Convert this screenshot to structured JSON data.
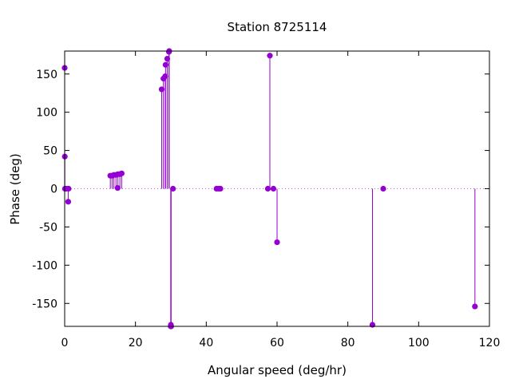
{
  "chart_data": {
    "type": "scatter",
    "style": "impulses-with-points",
    "title": "Station 8725114",
    "xlabel": "Angular speed (deg/hr)",
    "ylabel": "Phase (deg)",
    "xlim": [
      0,
      120
    ],
    "ylim": [
      -180,
      180
    ],
    "xticks": [
      0,
      20,
      40,
      60,
      80,
      100,
      120
    ],
    "yticks": [
      -150,
      -100,
      -50,
      0,
      50,
      100,
      150
    ],
    "zero_line": "dotted",
    "grid": false,
    "legend": "none",
    "color": "#9400d3",
    "points": [
      {
        "x": 0.0,
        "y": 158
      },
      {
        "x": 0.04,
        "y": 42
      },
      {
        "x": 0.08,
        "y": 0
      },
      {
        "x": 0.5,
        "y": 0
      },
      {
        "x": 1.0,
        "y": -17
      },
      {
        "x": 1.1,
        "y": 0
      },
      {
        "x": 12.9,
        "y": 17
      },
      {
        "x": 13.4,
        "y": 17
      },
      {
        "x": 13.9,
        "y": 18
      },
      {
        "x": 14.5,
        "y": 18
      },
      {
        "x": 14.96,
        "y": 1
      },
      {
        "x": 15.04,
        "y": 19
      },
      {
        "x": 15.6,
        "y": 19
      },
      {
        "x": 16.1,
        "y": 20
      },
      {
        "x": 27.4,
        "y": 130
      },
      {
        "x": 27.9,
        "y": 144
      },
      {
        "x": 28.4,
        "y": 147
      },
      {
        "x": 28.5,
        "y": 162
      },
      {
        "x": 28.98,
        "y": 170
      },
      {
        "x": 29.46,
        "y": 179
      },
      {
        "x": 29.53,
        "y": 180
      },
      {
        "x": 29.96,
        "y": -180
      },
      {
        "x": 30.0,
        "y": -178
      },
      {
        "x": 30.08,
        "y": -180
      },
      {
        "x": 30.6,
        "y": 0
      },
      {
        "x": 42.9,
        "y": 0
      },
      {
        "x": 43.5,
        "y": 0
      },
      {
        "x": 44.0,
        "y": 0
      },
      {
        "x": 57.4,
        "y": 0
      },
      {
        "x": 57.97,
        "y": 174
      },
      {
        "x": 58.98,
        "y": 0
      },
      {
        "x": 60.0,
        "y": -70
      },
      {
        "x": 86.95,
        "y": -178
      },
      {
        "x": 90.0,
        "y": 0
      },
      {
        "x": 115.9,
        "y": -154
      }
    ]
  }
}
